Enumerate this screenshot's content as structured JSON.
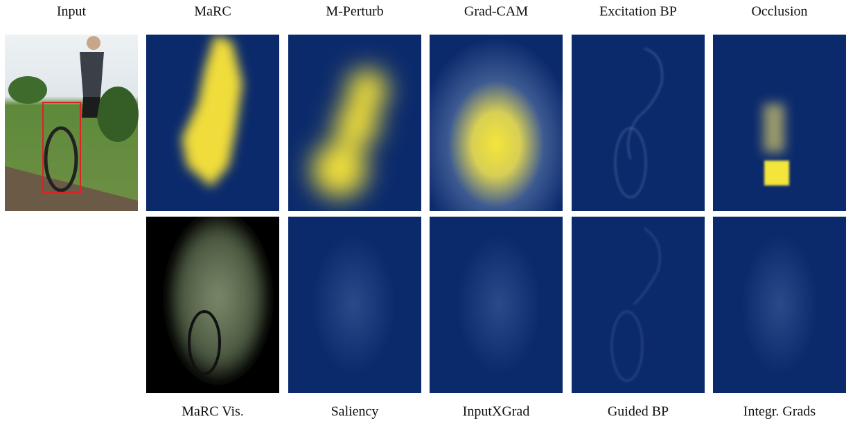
{
  "top_labels": [
    "Input",
    "MaRC",
    "M-Perturb",
    "Grad-CAM",
    "Excitation BP",
    "Occlusion"
  ],
  "bottom_labels": [
    "MaRC Vis.",
    "Saliency",
    "InputXGrad",
    "Guided BP",
    "Integr. Grads"
  ]
}
